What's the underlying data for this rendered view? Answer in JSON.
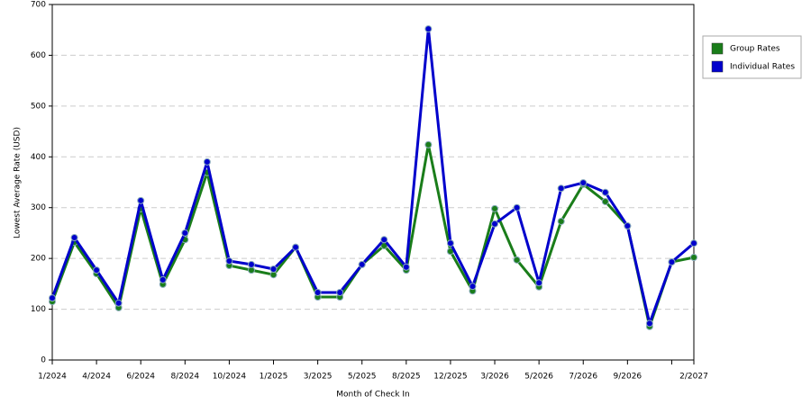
{
  "chart_data": {
    "type": "line",
    "xlabel": "Month of Check In",
    "ylabel": "Lowest Average Rate (USD)",
    "categories": [
      "1/2024",
      null,
      "4/2024",
      null,
      "6/2024",
      null,
      "8/2024",
      null,
      "10/2024",
      null,
      "1/2025",
      null,
      "3/2025",
      null,
      "5/2025",
      null,
      "8/2025",
      null,
      "12/2025",
      null,
      "3/2026",
      null,
      "5/2026",
      null,
      "7/2026",
      null,
      "9/2026",
      null,
      null,
      "2/2027"
    ],
    "series": [
      {
        "name": "Group Rates",
        "color": "#1a7d1a",
        "values": [
          115,
          232,
          170,
          103,
          298,
          149,
          237,
          369,
          186,
          177,
          168,
          222,
          124,
          124,
          188,
          225,
          177,
          424,
          214,
          136,
          298,
          197,
          144,
          273,
          346,
          312,
          264,
          66,
          193,
          202
        ]
      },
      {
        "name": "Individual Rates",
        "color": "#0000cc",
        "values": [
          122,
          241,
          177,
          112,
          314,
          158,
          250,
          390,
          195,
          188,
          179,
          222,
          133,
          133,
          188,
          237,
          183,
          652,
          230,
          145,
          268,
          300,
          152,
          338,
          349,
          330,
          264,
          72,
          193,
          230
        ]
      }
    ],
    "ylim": [
      0,
      700
    ],
    "yticks": [
      0,
      100,
      200,
      300,
      400,
      500,
      600,
      700
    ],
    "grid": true
  }
}
